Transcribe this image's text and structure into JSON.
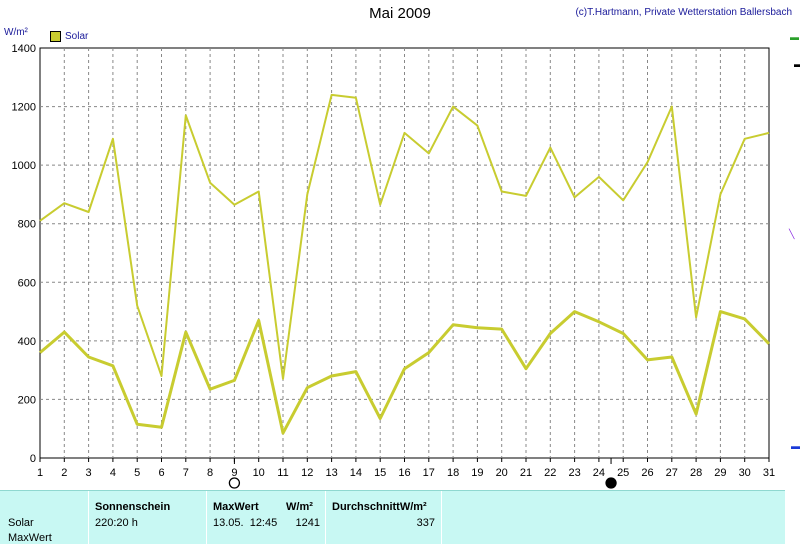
{
  "title": "Mai 2009",
  "credit": "(c)T.Hartmann, Private Wetterstation Ballersbach",
  "unit_label": "W/m²",
  "legend_label": "Solar",
  "chart_data": {
    "type": "line",
    "title": "Mai 2009",
    "ylabel": "W/m²",
    "x": [
      1,
      2,
      3,
      4,
      5,
      6,
      7,
      8,
      9,
      10,
      11,
      12,
      13,
      14,
      15,
      16,
      17,
      18,
      19,
      20,
      21,
      22,
      23,
      24,
      25,
      26,
      27,
      28,
      29,
      30,
      31
    ],
    "ylim": [
      0,
      1400
    ],
    "yticks": [
      0,
      200,
      400,
      600,
      800,
      1000,
      1200,
      1400
    ],
    "grid": true,
    "legend": "top-left",
    "series": [
      {
        "name": "Solar",
        "role": "MaxWert",
        "color": "#c8cc30",
        "values": [
          810,
          870,
          840,
          1090,
          520,
          280,
          1170,
          940,
          865,
          910,
          270,
          900,
          1240,
          1230,
          865,
          1110,
          1040,
          1200,
          1135,
          910,
          895,
          1060,
          890,
          960,
          880,
          1010,
          1200,
          480,
          900,
          1090,
          1110
        ]
      },
      {
        "name": "Solar",
        "role": "Durchschnitt",
        "color": "#c8cc30",
        "values": [
          360,
          430,
          345,
          315,
          115,
          105,
          430,
          235,
          265,
          470,
          85,
          240,
          280,
          295,
          135,
          305,
          360,
          455,
          445,
          440,
          305,
          425,
          500,
          465,
          425,
          335,
          345,
          150,
          500,
          475,
          390
        ]
      }
    ],
    "moon_markers": [
      {
        "day": 9,
        "phase": "full"
      },
      {
        "day": 24.5,
        "phase": "new"
      }
    ]
  },
  "panel": {
    "row_solar": "Solar",
    "row_maxwert": "MaxWert",
    "sonnenschein_header": "Sonnenschein",
    "sonnenschein_value": "220:20 h",
    "maxwert_header": "MaxWert",
    "maxwert_unit": "W/m²",
    "maxwert_datetime": "13.05.  12:45",
    "maxwert_value": "1241",
    "durchschnitt_header": "DurchschnittW/m²",
    "durchschnitt_value": "337"
  },
  "colors": {
    "series": "#c8cc30",
    "panel_bg": "#c8f8f3"
  }
}
